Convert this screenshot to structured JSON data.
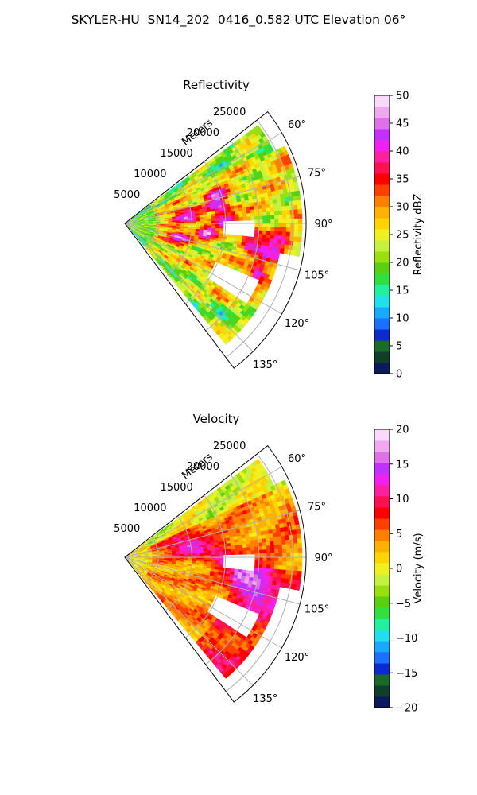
{
  "figure_title": "SKYLER-HU  SN14_202  0416_0.582 UTC Elevation 06°",
  "chart_data": [
    {
      "type": "heatmap",
      "projection": "polar-sector",
      "title": "Reflectivity",
      "radial_label": "Meters",
      "radial_ticks": [
        "5000",
        "10000",
        "15000",
        "20000",
        "25000"
      ],
      "radial_tick_values": [
        5000,
        10000,
        15000,
        20000,
        25000
      ],
      "range_max_m": 27000,
      "azimuth_range_deg": [
        52,
        143
      ],
      "azimuth_ticks": [
        "60°",
        "75°",
        "90°",
        "105°",
        "120°",
        "135°"
      ],
      "azimuth_tick_values": [
        60,
        75,
        90,
        105,
        120,
        135
      ],
      "grid": true,
      "colorbar": {
        "label": "Reflectivity dBZ",
        "range": [
          0,
          50
        ],
        "ticks": [
          "0",
          "5",
          "10",
          "15",
          "20",
          "25",
          "30",
          "35",
          "40",
          "45",
          "50"
        ],
        "tick_values": [
          0,
          5,
          10,
          15,
          20,
          25,
          30,
          35,
          40,
          45,
          50
        ],
        "colors": [
          "#0a1a5c",
          "#103e2a",
          "#1a6b2a",
          "#0a2bd0",
          "#1a70ff",
          "#19a8ff",
          "#20e0f0",
          "#20f0a0",
          "#30e040",
          "#58d010",
          "#98e010",
          "#c8f040",
          "#f0f020",
          "#ffd400",
          "#ffb000",
          "#ff8000",
          "#ff4000",
          "#ff0000",
          "#ff1050",
          "#ff20a0",
          "#f020f0",
          "#c030ff",
          "#e070e8",
          "#f0a8f0",
          "#fad8fa"
        ]
      },
      "field_summary": "mostly 20–30 dBZ with embedded 35–45 dBZ cells; missing data in eastern notches"
    },
    {
      "type": "heatmap",
      "projection": "polar-sector",
      "title": "Velocity",
      "radial_label": "Meters",
      "radial_ticks": [
        "5000",
        "10000",
        "15000",
        "20000",
        "25000"
      ],
      "radial_tick_values": [
        5000,
        10000,
        15000,
        20000,
        25000
      ],
      "range_max_m": 27000,
      "azimuth_range_deg": [
        52,
        143
      ],
      "azimuth_ticks": [
        "60°",
        "75°",
        "90°",
        "105°",
        "120°",
        "135°"
      ],
      "azimuth_tick_values": [
        60,
        75,
        90,
        105,
        120,
        135
      ],
      "grid": true,
      "colorbar": {
        "label": "Velocity (m/s)",
        "range": [
          -20,
          20
        ],
        "ticks": [
          "−20",
          "−15",
          "−10",
          "−5",
          "0",
          "5",
          "10",
          "15",
          "20"
        ],
        "tick_values": [
          -20,
          -15,
          -10,
          -5,
          0,
          5,
          10,
          15,
          20
        ],
        "colors": [
          "#0a1a5c",
          "#103e2a",
          "#1a6b2a",
          "#0a2bd0",
          "#1a70ff",
          "#19a8ff",
          "#20e0f0",
          "#20f0a0",
          "#30e040",
          "#58d010",
          "#98e010",
          "#c8f040",
          "#f0f020",
          "#ffd400",
          "#ffb000",
          "#ff8000",
          "#ff4000",
          "#ff0000",
          "#ff1050",
          "#ff20a0",
          "#f020f0",
          "#c030ff",
          "#e070e8",
          "#f0a8f0",
          "#fad8fa"
        ]
      },
      "field_summary": "0 to +10 m/s dominant (yellow-red) with +12 to +16 m/s magenta patches; near-zero green along northern edge"
    }
  ]
}
